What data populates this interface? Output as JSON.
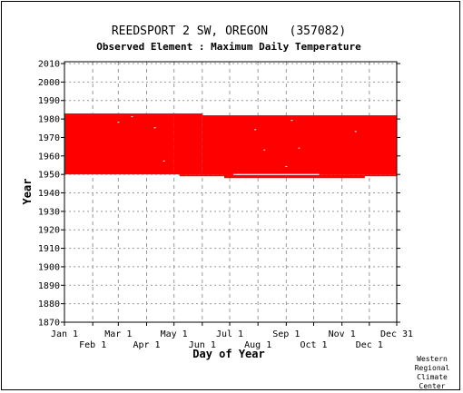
{
  "chart_data": {
    "type": "heatmap",
    "title": "REEDSPORT 2 SW, OREGON   (357082)",
    "subtitle": "Observed Element : Maximum Daily Temperature",
    "xlabel": "Day of Year",
    "ylabel": "Year",
    "xlim": [
      1,
      365
    ],
    "ylim": [
      1870,
      2011
    ],
    "x_ticks_top_row": [
      {
        "label": "Jan 1",
        "day": 1
      },
      {
        "label": "Mar 1",
        "day": 60
      },
      {
        "label": "May 1",
        "day": 121
      },
      {
        "label": "Jul 1",
        "day": 182
      },
      {
        "label": "Sep 1",
        "day": 244
      },
      {
        "label": "Nov 1",
        "day": 305
      },
      {
        "label": "Dec 31",
        "day": 365
      }
    ],
    "x_ticks_bottom_row": [
      {
        "label": "Feb 1",
        "day": 32
      },
      {
        "label": "Apr 1",
        "day": 91
      },
      {
        "label": "Jun 1",
        "day": 152
      },
      {
        "label": "Aug 1",
        "day": 213
      },
      {
        "label": "Oct 1",
        "day": 274
      },
      {
        "label": "Dec 1",
        "day": 335
      }
    ],
    "y_ticks": [
      1870,
      1880,
      1890,
      1900,
      1910,
      1920,
      1930,
      1940,
      1950,
      1960,
      1970,
      1980,
      1990,
      2000,
      2010
    ],
    "grid": true,
    "data_color": "#ff0000",
    "coverage_blocks": [
      {
        "day_start": 1,
        "day_end": 121,
        "year_start": 1950,
        "year_end": 1982
      },
      {
        "day_start": 121,
        "day_end": 152,
        "year_start": 1950,
        "year_end": 1983
      },
      {
        "day_start": 127,
        "day_end": 166,
        "year_start": 1949,
        "year_end": 1950
      },
      {
        "day_start": 152,
        "day_end": 365,
        "year_start": 1950,
        "year_end": 1982
      },
      {
        "day_start": 166,
        "day_end": 196,
        "year_start": 1949,
        "year_end": 1950
      },
      {
        "day_start": 176,
        "day_end": 271,
        "year_start": 1948,
        "year_end": 1950
      },
      {
        "day_start": 271,
        "day_end": 330,
        "year_start": 1948,
        "year_end": 1950
      },
      {
        "day_start": 330,
        "day_end": 365,
        "year_start": 1949,
        "year_end": 1950
      },
      {
        "day_start": 1,
        "day_end": 121,
        "year_start": 1982,
        "year_end": 1983
      }
    ],
    "missing_spots": [
      {
        "day": 60,
        "year": 1978
      },
      {
        "day": 75,
        "year": 1981
      },
      {
        "day": 100,
        "year": 1975
      },
      {
        "day": 110,
        "year": 1957
      },
      {
        "day": 210,
        "year": 1974
      },
      {
        "day": 220,
        "year": 1963
      },
      {
        "day": 244,
        "year": 1954
      },
      {
        "day": 250,
        "year": 1979
      },
      {
        "day": 258,
        "year": 1964
      },
      {
        "day": 320,
        "year": 1973
      }
    ],
    "gap_band": {
      "day_start": 186,
      "day_end": 280,
      "year": 1950
    }
  },
  "credit": [
    "Western",
    "Regional",
    "Climate",
    "Center"
  ]
}
